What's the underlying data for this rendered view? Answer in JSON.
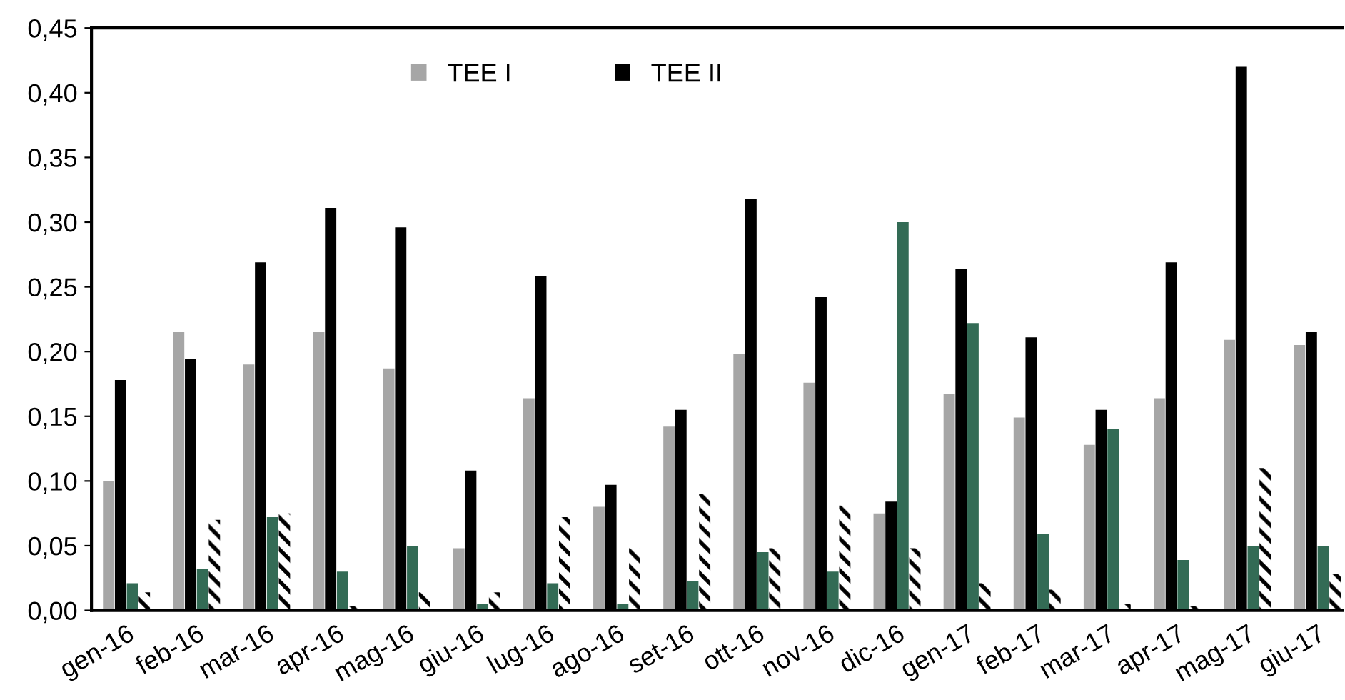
{
  "chart_data": {
    "type": "bar",
    "categories": [
      "gen-16",
      "feb-16",
      "mar-16",
      "apr-16",
      "mag-16",
      "giu-16",
      "lug-16",
      "ago-16",
      "set-16",
      "ott-16",
      "nov-16",
      "dic-16",
      "gen-17",
      "feb-17",
      "mar-17",
      "apr-17",
      "mag-17",
      "giu-17"
    ],
    "series": [
      {
        "name": "TEE I",
        "color": "#a6a6a6",
        "values": [
          0.1,
          0.215,
          0.19,
          0.215,
          0.187,
          0.048,
          0.164,
          0.08,
          0.142,
          0.198,
          0.176,
          0.075,
          0.167,
          0.149,
          0.128,
          0.164,
          0.209,
          0.205
        ]
      },
      {
        "name": "TEE II",
        "color": "#000000",
        "values": [
          0.178,
          0.194,
          0.269,
          0.311,
          0.296,
          0.108,
          0.258,
          0.097,
          0.155,
          0.318,
          0.242,
          0.084,
          0.264,
          0.211,
          0.155,
          0.269,
          0.42,
          0.215
        ]
      },
      {
        "color": "#336b55",
        "values": [
          0.021,
          0.032,
          0.072,
          0.03,
          0.05,
          0.005,
          0.021,
          0.005,
          0.023,
          0.045,
          0.03,
          0.3,
          0.222,
          0.059,
          0.14,
          0.039,
          0.05,
          0.05
        ]
      },
      {
        "color": "#000000",
        "values": [
          0.014,
          0.07,
          0.075,
          0.003,
          0.014,
          0.014,
          0.072,
          0.048,
          0.09,
          0.048,
          0.081,
          0.048,
          0.021,
          0.016,
          0.005,
          0.003,
          0.11,
          0.028
        ]
      }
    ],
    "ylim": [
      0,
      0.45
    ],
    "yticks": [
      {
        "value": 0,
        "label": "0,00"
      },
      {
        "value": 0.05,
        "label": "0,05"
      },
      {
        "value": 0.1,
        "label": "0,10"
      },
      {
        "value": 0.15,
        "label": "0,15"
      },
      {
        "value": 0.2,
        "label": "0,20"
      },
      {
        "value": 0.25,
        "label": "0,25"
      },
      {
        "value": 0.3,
        "label": "0,30"
      },
      {
        "value": 0.35,
        "label": "0,35"
      },
      {
        "value": 0.4,
        "label": "0,40"
      },
      {
        "value": 0.45,
        "label": "0,45"
      }
    ],
    "legend": "top",
    "grid": false
  }
}
